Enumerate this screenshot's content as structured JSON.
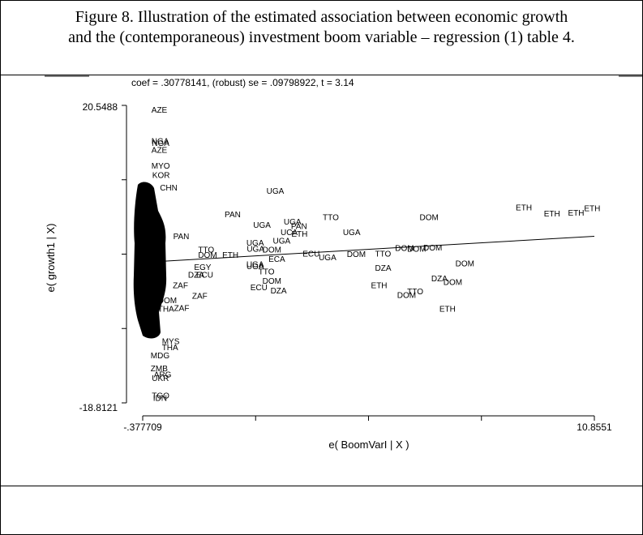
{
  "figure": {
    "caption_line1": "Figure 8.  Illustration of the estimated association between economic growth",
    "caption_line2": "and the (contemporaneous) investment boom variable – regression (1) table 4."
  },
  "chart_data": {
    "type": "scatter",
    "title": "coef = .30778141, (robust) se = .09798922, t = 3.14",
    "xlabel": "e( BoomVarI | X )",
    "ylabel": "e( growth1 | X)",
    "xlim": [
      -0.377709,
      10.8551
    ],
    "ylim": [
      -18.8121,
      20.5488
    ],
    "x_tick_labels": [
      "-.377709",
      "10.8551"
    ],
    "y_tick_labels": [
      "20.5488",
      "-18.8121"
    ],
    "grid": false,
    "fit_line": {
      "slope": 0.30778141,
      "intercept": -0.11
    },
    "points": [
      {
        "label": "AZE",
        "x": -0.16,
        "y": 20.0
      },
      {
        "label": "NGA",
        "x": -0.16,
        "y": 15.9
      },
      {
        "label": "NGA",
        "x": -0.15,
        "y": 15.6
      },
      {
        "label": "AZE",
        "x": -0.16,
        "y": 14.7
      },
      {
        "label": "MYO",
        "x": -0.16,
        "y": 12.6
      },
      {
        "label": "KOR",
        "x": -0.14,
        "y": 11.4
      },
      {
        "label": "CHN",
        "x": 0.05,
        "y": 9.7
      },
      {
        "label": "UGA",
        "x": 2.7,
        "y": 9.3
      },
      {
        "label": "PAN",
        "x": 1.66,
        "y": 6.2
      },
      {
        "label": "UGA",
        "x": 2.37,
        "y": 4.8
      },
      {
        "label": "UGA",
        "x": 3.13,
        "y": 5.2
      },
      {
        "label": "PAN",
        "x": 3.31,
        "y": 4.6
      },
      {
        "label": "TTO",
        "x": 4.1,
        "y": 5.8
      },
      {
        "label": "DOM",
        "x": 6.51,
        "y": 5.8
      },
      {
        "label": "ETH",
        "x": 8.9,
        "y": 7.1
      },
      {
        "label": "ETH",
        "x": 9.6,
        "y": 6.3
      },
      {
        "label": "ETH",
        "x": 10.2,
        "y": 6.4
      },
      {
        "label": "ETH",
        "x": 10.6,
        "y": 7.0
      },
      {
        "label": "UGA",
        "x": 4.6,
        "y": 3.8
      },
      {
        "label": "UCA",
        "x": 3.05,
        "y": 3.8
      },
      {
        "label": "ETH",
        "x": 3.32,
        "y": 3.6
      },
      {
        "label": "PAN",
        "x": 0.38,
        "y": 3.3
      },
      {
        "label": "UGA",
        "x": 2.2,
        "y": 2.4
      },
      {
        "label": "UGA",
        "x": 2.86,
        "y": 2.7
      },
      {
        "label": "TTO",
        "x": 1.0,
        "y": 1.5
      },
      {
        "label": "DOM",
        "x": 1.0,
        "y": 0.8
      },
      {
        "label": "ETH",
        "x": 1.6,
        "y": 0.8
      },
      {
        "label": "UGA",
        "x": 2.21,
        "y": 1.6
      },
      {
        "label": "DOM",
        "x": 2.6,
        "y": 1.5
      },
      {
        "label": "ECU",
        "x": 3.6,
        "y": 1.0
      },
      {
        "label": "UGA",
        "x": 4.0,
        "y": 0.5
      },
      {
        "label": "DOM",
        "x": 4.7,
        "y": 0.9
      },
      {
        "label": "TTO",
        "x": 5.4,
        "y": 1.0
      },
      {
        "label": "DOM",
        "x": 5.9,
        "y": 1.7
      },
      {
        "label": "DOM",
        "x": 6.2,
        "y": 1.6
      },
      {
        "label": "DOM",
        "x": 6.6,
        "y": 1.8
      },
      {
        "label": "DOM",
        "x": 7.4,
        "y": -0.3
      },
      {
        "label": "ECA",
        "x": 2.75,
        "y": 0.3
      },
      {
        "label": "UGA",
        "x": 2.2,
        "y": -0.4
      },
      {
        "label": "UGA",
        "x": 2.2,
        "y": -0.7
      },
      {
        "label": "TTO",
        "x": 2.5,
        "y": -1.4
      },
      {
        "label": "EGY",
        "x": 0.9,
        "y": -0.8
      },
      {
        "label": "DZA",
        "x": 0.75,
        "y": -1.8
      },
      {
        "label": "ECU",
        "x": 0.95,
        "y": -1.8
      },
      {
        "label": "DZA",
        "x": 5.4,
        "y": -0.9
      },
      {
        "label": "DZA",
        "x": 6.8,
        "y": -2.3
      },
      {
        "label": "DOM",
        "x": 7.1,
        "y": -2.8
      },
      {
        "label": "DOM",
        "x": 2.6,
        "y": -2.6
      },
      {
        "label": "ECU",
        "x": 2.3,
        "y": -3.5
      },
      {
        "label": "DZA",
        "x": 2.8,
        "y": -3.9
      },
      {
        "label": "ETH",
        "x": 5.3,
        "y": -3.2
      },
      {
        "label": "TTO",
        "x": 6.2,
        "y": -4.0
      },
      {
        "label": "DOM",
        "x": 5.95,
        "y": -4.5
      },
      {
        "label": "ETH",
        "x": 7.0,
        "y": -6.3
      },
      {
        "label": "ZAF",
        "x": 0.37,
        "y": -3.2
      },
      {
        "label": "ZAF",
        "x": 0.85,
        "y": -4.6
      },
      {
        "label": "ZAF",
        "x": 0.4,
        "y": -6.2
      },
      {
        "label": "DOM",
        "x": 0.0,
        "y": -5.2
      },
      {
        "label": "THA",
        "x": 0.0,
        "y": -6.3
      },
      {
        "label": "MYS",
        "x": 0.1,
        "y": -10.6
      },
      {
        "label": "THA",
        "x": 0.1,
        "y": -11.4
      },
      {
        "label": "MDG",
        "x": -0.18,
        "y": -12.5
      },
      {
        "label": "ZMB",
        "x": -0.18,
        "y": -14.2
      },
      {
        "label": "ARG",
        "x": -0.1,
        "y": -15.0
      },
      {
        "label": "UKR",
        "x": -0.15,
        "y": -15.5
      },
      {
        "label": "TGO",
        "x": -0.15,
        "y": -17.8
      },
      {
        "label": "IDN",
        "x": -0.12,
        "y": -18.1
      }
    ]
  }
}
